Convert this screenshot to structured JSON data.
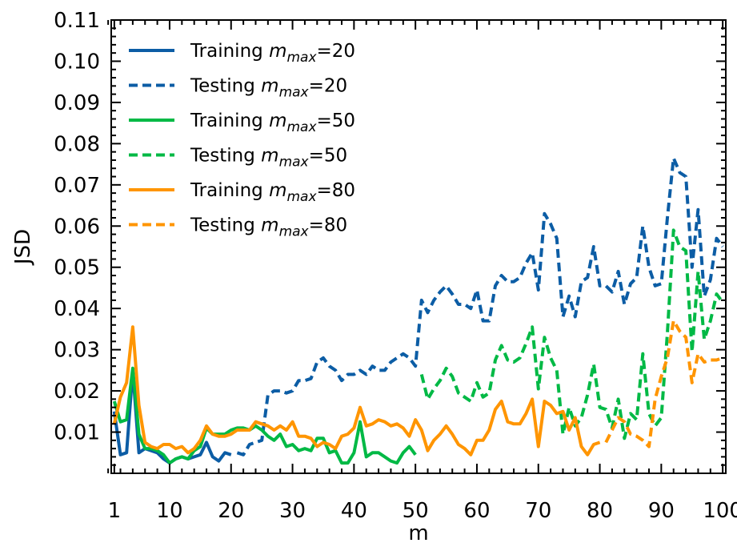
{
  "chart_data": {
    "type": "line",
    "xlabel": "m",
    "ylabel": "JSD",
    "xlim": [
      0.5,
      100.5
    ],
    "ylim": [
      0,
      0.11
    ],
    "xticks": [
      1,
      10,
      20,
      30,
      40,
      50,
      60,
      70,
      80,
      90,
      100
    ],
    "xtick_labels": [
      "1",
      "10",
      "20",
      "30",
      "40",
      "50",
      "60",
      "70",
      "80",
      "90",
      "100"
    ],
    "yticks": [
      0.01,
      0.02,
      0.03,
      0.04,
      0.05,
      0.06,
      0.07,
      0.08,
      0.09,
      0.1,
      0.11
    ],
    "ytick_labels": [
      "0.01",
      "0.02",
      "0.03",
      "0.04",
      "0.05",
      "0.06",
      "0.07",
      "0.08",
      "0.09",
      "0.10",
      "0.11"
    ],
    "grid": false,
    "legend_position": "upper-left",
    "series": [
      {
        "name": "Training m_max=20",
        "legend_prefix": "Training ",
        "legend_sub": "max",
        "legend_suffix": "=20",
        "color": "#0c5da5",
        "dash": "solid",
        "x": [
          1,
          2,
          3,
          4,
          5,
          6,
          7,
          8,
          9,
          10,
          11,
          12,
          13,
          14,
          15,
          16,
          17,
          18,
          19,
          20
        ],
        "y": [
          0.015,
          0.0045,
          0.005,
          0.025,
          0.005,
          0.006,
          0.0055,
          0.005,
          0.0035,
          0.0025,
          0.0035,
          0.004,
          0.0035,
          0.004,
          0.0045,
          0.0075,
          0.004,
          0.003,
          0.005,
          0.0045
        ]
      },
      {
        "name": "Testing m_max=20",
        "legend_prefix": "Testing ",
        "legend_sub": "max",
        "legend_suffix": "=20",
        "color": "#0c5da5",
        "dash": "dashed",
        "x": [
          21,
          22,
          23,
          24,
          25,
          26,
          27,
          28,
          29,
          30,
          31,
          32,
          33,
          34,
          35,
          36,
          37,
          38,
          39,
          40,
          41,
          42,
          43,
          44,
          45,
          46,
          47,
          48,
          49,
          50,
          51,
          52,
          53,
          54,
          55,
          56,
          57,
          58,
          59,
          60,
          61,
          62,
          63,
          64,
          65,
          66,
          67,
          68,
          69,
          70,
          71,
          72,
          73,
          74,
          75,
          76,
          77,
          78,
          79,
          80,
          81,
          82,
          83,
          84,
          85,
          86,
          87,
          88,
          89,
          90,
          91,
          92,
          93,
          94,
          95,
          96,
          97,
          98,
          99,
          100
        ],
        "y": [
          0.005,
          0.0045,
          0.007,
          0.0075,
          0.008,
          0.019,
          0.02,
          0.02,
          0.0195,
          0.02,
          0.0225,
          0.0225,
          0.023,
          0.027,
          0.028,
          0.026,
          0.025,
          0.0225,
          0.024,
          0.024,
          0.025,
          0.024,
          0.026,
          0.025,
          0.025,
          0.027,
          0.028,
          0.029,
          0.028,
          0.026,
          0.042,
          0.039,
          0.042,
          0.044,
          0.0455,
          0.0435,
          0.041,
          0.041,
          0.04,
          0.0445,
          0.037,
          0.037,
          0.0455,
          0.048,
          0.0465,
          0.0465,
          0.0475,
          0.051,
          0.0535,
          0.0445,
          0.063,
          0.0605,
          0.057,
          0.038,
          0.043,
          0.038,
          0.0465,
          0.0475,
          0.055,
          0.0455,
          0.0455,
          0.044,
          0.049,
          0.041,
          0.046,
          0.0475,
          0.06,
          0.05,
          0.0455,
          0.046,
          0.062,
          0.0765,
          0.073,
          0.072,
          0.05,
          0.064,
          0.043,
          0.047,
          0.057,
          0.055
        ]
      },
      {
        "name": "Training m_max=50",
        "legend_prefix": "Training ",
        "legend_sub": "max",
        "legend_suffix": "=50",
        "color": "#00b945",
        "dash": "solid",
        "x": [
          1,
          2,
          3,
          4,
          5,
          6,
          7,
          8,
          9,
          10,
          11,
          12,
          13,
          14,
          15,
          16,
          17,
          18,
          19,
          20,
          21,
          22,
          23,
          24,
          25,
          26,
          27,
          28,
          29,
          30,
          31,
          32,
          33,
          34,
          35,
          36,
          37,
          38,
          39,
          40,
          41,
          42,
          43,
          44,
          45,
          46,
          47,
          48,
          49,
          50
        ],
        "y": [
          0.0175,
          0.0125,
          0.013,
          0.0255,
          0.0095,
          0.006,
          0.006,
          0.0055,
          0.0045,
          0.0025,
          0.0035,
          0.004,
          0.0035,
          0.0055,
          0.0065,
          0.011,
          0.0095,
          0.0095,
          0.0095,
          0.0105,
          0.011,
          0.011,
          0.0105,
          0.0115,
          0.0105,
          0.009,
          0.008,
          0.0095,
          0.0065,
          0.007,
          0.0055,
          0.006,
          0.0055,
          0.0085,
          0.0085,
          0.005,
          0.0055,
          0.0025,
          0.0025,
          0.005,
          0.0125,
          0.004,
          0.005,
          0.005,
          0.004,
          0.003,
          0.0025,
          0.005,
          0.0065,
          0.0045
        ]
      },
      {
        "name": "Testing m_max=50",
        "legend_prefix": "Testing ",
        "legend_sub": "max",
        "legend_suffix": "=50",
        "color": "#00b945",
        "dash": "dashed",
        "x": [
          51,
          52,
          53,
          54,
          55,
          56,
          57,
          58,
          59,
          60,
          61,
          62,
          63,
          64,
          65,
          66,
          67,
          68,
          69,
          70,
          71,
          72,
          73,
          74,
          75,
          76,
          77,
          78,
          79,
          80,
          81,
          82,
          83,
          84,
          85,
          86,
          87,
          88,
          89,
          90,
          91,
          92,
          93,
          94,
          95,
          96,
          97,
          98,
          99,
          100
        ],
        "y": [
          0.024,
          0.018,
          0.0205,
          0.0225,
          0.0255,
          0.0235,
          0.0195,
          0.0185,
          0.0175,
          0.022,
          0.0185,
          0.0195,
          0.0275,
          0.031,
          0.0275,
          0.027,
          0.028,
          0.0315,
          0.0355,
          0.0205,
          0.033,
          0.028,
          0.025,
          0.0095,
          0.016,
          0.0115,
          0.0135,
          0.019,
          0.0265,
          0.016,
          0.0155,
          0.011,
          0.018,
          0.0085,
          0.0145,
          0.013,
          0.029,
          0.0145,
          0.0115,
          0.0135,
          0.034,
          0.059,
          0.055,
          0.054,
          0.0295,
          0.049,
          0.0325,
          0.037,
          0.0435,
          0.0415
        ]
      },
      {
        "name": "Training m_max=80",
        "legend_prefix": "Training ",
        "legend_sub": "max",
        "legend_suffix": "=80",
        "color": "#ff9500",
        "dash": "solid",
        "x": [
          1,
          2,
          3,
          4,
          5,
          6,
          7,
          8,
          9,
          10,
          11,
          12,
          13,
          14,
          15,
          16,
          17,
          18,
          19,
          20,
          21,
          22,
          23,
          24,
          25,
          26,
          27,
          28,
          29,
          30,
          31,
          32,
          33,
          34,
          35,
          36,
          37,
          38,
          39,
          40,
          41,
          42,
          43,
          44,
          45,
          46,
          47,
          48,
          49,
          50,
          51,
          52,
          53,
          54,
          55,
          56,
          57,
          58,
          59,
          60,
          61,
          62,
          63,
          64,
          65,
          66,
          67,
          68,
          69,
          70,
          71,
          72,
          73,
          74,
          75,
          76,
          77,
          78,
          79,
          80
        ],
        "y": [
          0.012,
          0.0185,
          0.022,
          0.0355,
          0.0165,
          0.0075,
          0.0065,
          0.006,
          0.007,
          0.007,
          0.006,
          0.0065,
          0.005,
          0.006,
          0.008,
          0.0115,
          0.0095,
          0.009,
          0.009,
          0.0095,
          0.0105,
          0.0105,
          0.0105,
          0.0125,
          0.012,
          0.0115,
          0.0105,
          0.0115,
          0.0105,
          0.0125,
          0.009,
          0.009,
          0.0085,
          0.0065,
          0.0075,
          0.007,
          0.006,
          0.009,
          0.0095,
          0.011,
          0.016,
          0.0115,
          0.012,
          0.013,
          0.0125,
          0.0115,
          0.012,
          0.011,
          0.009,
          0.013,
          0.0105,
          0.0055,
          0.008,
          0.0095,
          0.0115,
          0.0095,
          0.007,
          0.006,
          0.0045,
          0.008,
          0.008,
          0.0105,
          0.0155,
          0.0175,
          0.0125,
          0.012,
          0.012,
          0.0145,
          0.018,
          0.0065,
          0.0175,
          0.0165,
          0.0145,
          0.015,
          0.0105,
          0.0135,
          0.0065,
          0.0045,
          0.007,
          0.0075
        ]
      },
      {
        "name": "Testing m_max=80",
        "legend_prefix": "Testing ",
        "legend_sub": "max",
        "legend_suffix": "=80",
        "color": "#ff9500",
        "dash": "dashed",
        "x": [
          81,
          82,
          83,
          84,
          85,
          86,
          87,
          88,
          89,
          90,
          91,
          92,
          93,
          94,
          95,
          96,
          97,
          98,
          99,
          100
        ],
        "y": [
          0.0075,
          0.0105,
          0.0135,
          0.0125,
          0.0095,
          0.009,
          0.008,
          0.0065,
          0.018,
          0.0235,
          0.028,
          0.037,
          0.0345,
          0.033,
          0.022,
          0.029,
          0.027,
          0.0275,
          0.0275,
          0.028
        ]
      }
    ]
  }
}
